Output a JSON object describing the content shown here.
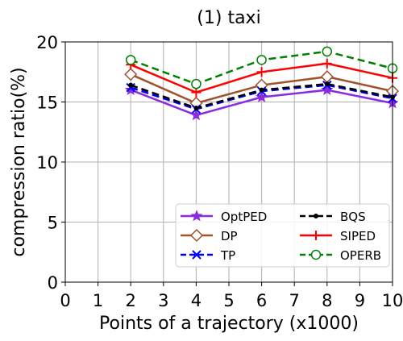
{
  "chart_data": {
    "type": "line",
    "title": "(1) taxi",
    "xlabel": "Points of a trajectory (x1000)",
    "ylabel": "compression ratio(%)",
    "xlim": [
      0,
      10
    ],
    "ylim": [
      0,
      20
    ],
    "xticks": [
      "0",
      "1",
      "2",
      "3",
      "4",
      "5",
      "6",
      "7",
      "8",
      "9",
      "10"
    ],
    "yticks": [
      "0",
      "5",
      "10",
      "15",
      "20"
    ],
    "grid": true,
    "legend_position": "bottom-right",
    "x": [
      2,
      4,
      6,
      8,
      10
    ],
    "series": [
      {
        "name": "OptPED",
        "values": [
          16.0,
          13.9,
          15.4,
          16.0,
          14.9
        ],
        "color": "#8a2be2",
        "dash": "solid",
        "marker": "star"
      },
      {
        "name": "DP",
        "values": [
          17.3,
          14.9,
          16.4,
          17.1,
          15.9
        ],
        "color": "#a0522d",
        "dash": "solid",
        "marker": "diamond"
      },
      {
        "name": "TP",
        "values": [
          16.2,
          14.4,
          15.9,
          16.4,
          15.3
        ],
        "color": "#0000ff",
        "dash": "dashed",
        "marker": "x"
      },
      {
        "name": "BQS",
        "values": [
          16.4,
          14.5,
          16.0,
          16.5,
          15.4
        ],
        "color": "#000000",
        "dash": "dashed",
        "marker": "dot"
      },
      {
        "name": "SIPED",
        "values": [
          18.1,
          15.8,
          17.5,
          18.2,
          17.0
        ],
        "color": "#ff0000",
        "dash": "solid",
        "marker": "plus"
      },
      {
        "name": "OPERB",
        "values": [
          18.5,
          16.5,
          18.5,
          19.2,
          17.8
        ],
        "color": "#008000",
        "dash": "dashed",
        "marker": "circle"
      }
    ]
  }
}
